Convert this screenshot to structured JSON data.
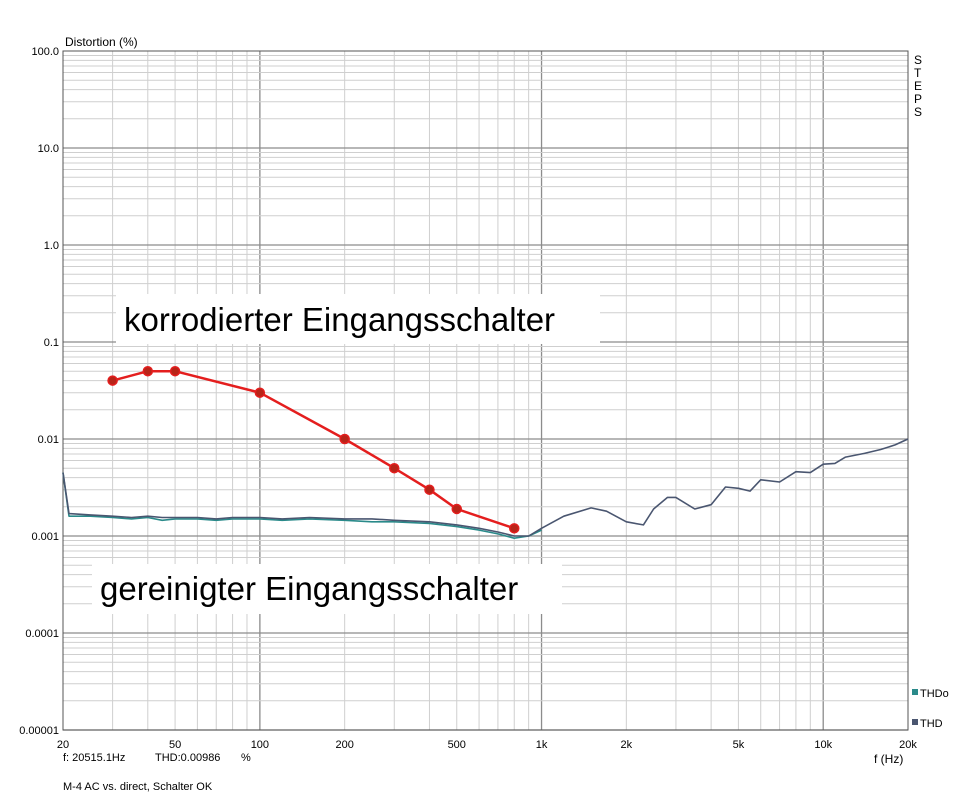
{
  "chart_data": {
    "type": "line",
    "ylabel": "Distortion (%)",
    "xlabel": "f (Hz)",
    "x_scale": "log",
    "y_scale": "log",
    "xlim": [
      20,
      20000
    ],
    "ylim": [
      1e-05,
      100
    ],
    "grid": true,
    "x_ticks": [
      {
        "value": 20,
        "label": "20"
      },
      {
        "value": 50,
        "label": "50"
      },
      {
        "value": 100,
        "label": "100"
      },
      {
        "value": 200,
        "label": "200"
      },
      {
        "value": 500,
        "label": "500"
      },
      {
        "value": 1000,
        "label": "1k"
      },
      {
        "value": 2000,
        "label": "2k"
      },
      {
        "value": 5000,
        "label": "5k"
      },
      {
        "value": 10000,
        "label": "10k"
      },
      {
        "value": 20000,
        "label": "20k"
      }
    ],
    "y_ticks": [
      {
        "value": 100,
        "label": "100.0"
      },
      {
        "value": 10,
        "label": "10.0"
      },
      {
        "value": 1,
        "label": "1.0"
      },
      {
        "value": 0.1,
        "label": "0.1"
      },
      {
        "value": 0.01,
        "label": "0.01"
      },
      {
        "value": 0.001,
        "label": "0.001"
      },
      {
        "value": 0.0001,
        "label": "0.0001"
      },
      {
        "value": 1e-05,
        "label": "0.00001"
      }
    ],
    "legend_position": "bottom-right",
    "series": [
      {
        "name": "THD",
        "color": "#4a5670",
        "x": [
          20,
          21,
          25,
          30,
          35,
          40,
          45,
          50,
          60,
          70,
          80,
          100,
          120,
          150,
          200,
          250,
          300,
          400,
          500,
          600,
          700,
          800,
          900,
          1000,
          1200,
          1500,
          1700,
          2000,
          2300,
          2500,
          2800,
          3000,
          3500,
          4000,
          4500,
          5000,
          5500,
          6000,
          7000,
          8000,
          9000,
          10000,
          11000,
          12000,
          14000,
          16000,
          18000,
          20000
        ],
        "y": [
          0.0045,
          0.0017,
          0.00165,
          0.0016,
          0.00155,
          0.0016,
          0.00155,
          0.00155,
          0.00155,
          0.0015,
          0.00155,
          0.00155,
          0.0015,
          0.00155,
          0.0015,
          0.0015,
          0.00145,
          0.0014,
          0.0013,
          0.0012,
          0.0011,
          0.001,
          0.001,
          0.0012,
          0.0016,
          0.00195,
          0.0018,
          0.0014,
          0.0013,
          0.0019,
          0.0025,
          0.0025,
          0.0019,
          0.0021,
          0.0032,
          0.0031,
          0.0029,
          0.0038,
          0.0036,
          0.0046,
          0.0045,
          0.0055,
          0.0056,
          0.0065,
          0.0071,
          0.0078,
          0.0087,
          0.01
        ]
      },
      {
        "name": "THDo",
        "color": "#2a8a8a",
        "x": [
          20,
          21,
          25,
          30,
          35,
          40,
          45,
          50,
          60,
          70,
          80,
          100,
          120,
          150,
          200,
          250,
          300,
          400,
          500,
          600,
          700,
          800,
          900,
          1000
        ],
        "y": [
          0.0045,
          0.0016,
          0.0016,
          0.00155,
          0.0015,
          0.00155,
          0.00145,
          0.0015,
          0.0015,
          0.00145,
          0.0015,
          0.0015,
          0.00145,
          0.0015,
          0.00145,
          0.0014,
          0.0014,
          0.00135,
          0.00125,
          0.00115,
          0.00105,
          0.00095,
          0.001,
          0.00115
        ]
      },
      {
        "name": "korrodierter Eingangsschalter",
        "color": "#e41e1e",
        "x": [
          30,
          40,
          50,
          100,
          200,
          300,
          400,
          500,
          800
        ],
        "y": [
          0.04,
          0.05,
          0.05,
          0.03,
          0.01,
          0.005,
          0.003,
          0.0019,
          0.0012
        ]
      }
    ],
    "annotations": [
      {
        "text": "korrodierter Eingangsschalter",
        "color": "#e63a18"
      },
      {
        "text": "gereinigter Eingangsschalter",
        "color": "#000000"
      }
    ],
    "watermark": "STEPS"
  },
  "status": {
    "readout_freq": "f: 20515.1Hz",
    "readout_thd": "THD:0.00986",
    "readout_unit": "%",
    "caption": "M-4 AC vs. direct, Schalter OK"
  }
}
